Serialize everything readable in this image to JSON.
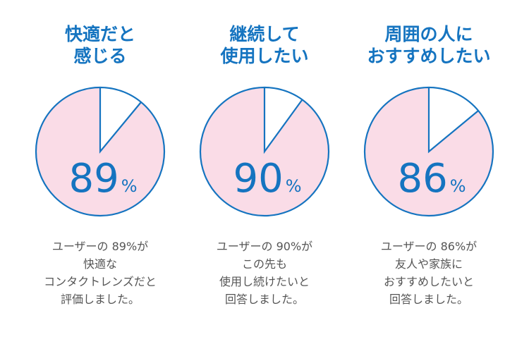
{
  "chart_data": [
    {
      "type": "pie",
      "title": [
        "快適だと",
        "感じる"
      ],
      "value": 89,
      "value_text": "89",
      "unit": "%",
      "description": [
        "ユーザーの 89%が",
        "快適な",
        "コンタクトレンズだと",
        "評価しました。"
      ]
    },
    {
      "type": "pie",
      "title": [
        "継続して",
        "使用したい"
      ],
      "value": 90,
      "value_text": "90",
      "unit": "%",
      "description": [
        "ユーザーの 90%が",
        "この先も",
        "使用し続けたいと",
        "回答しました。"
      ]
    },
    {
      "type": "pie",
      "title": [
        "周囲の人に",
        "おすすめしたい"
      ],
      "value": 86,
      "value_text": "86",
      "unit": "%",
      "description": [
        "ユーザーの 86%が",
        "友人や家族に",
        "おすすめしたいと",
        "回答しました。"
      ]
    }
  ],
  "colors": {
    "title": "#1574c0",
    "stroke": "#1574c0",
    "filled": "#fadce7",
    "empty": "#ffffff",
    "value_text": "#1574c0",
    "description": "#555555"
  }
}
